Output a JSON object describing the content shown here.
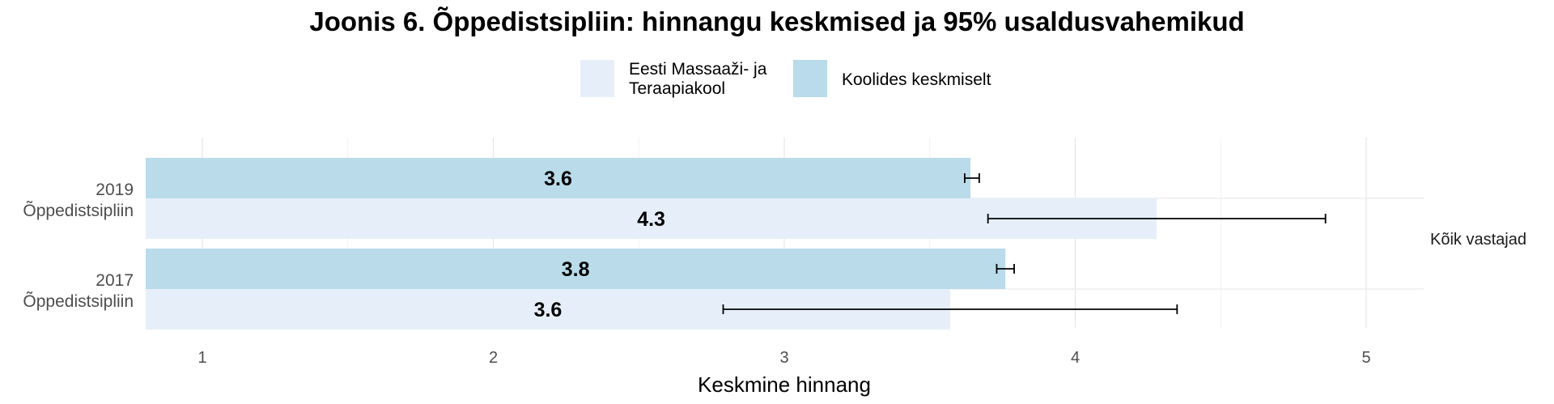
{
  "chart_data": {
    "type": "bar",
    "orientation": "horizontal",
    "title": "Joonis 6. Õppedistsipliin: hinnangu keskmised ja 95% usaldusvahemikud",
    "xlabel": "Keskmine hinnang",
    "xlim": [
      0.8,
      5.2
    ],
    "xticks": [
      "1",
      "2",
      "3",
      "4",
      "5"
    ],
    "xtick_values": [
      1,
      2,
      3,
      4,
      5
    ],
    "facet_label": "Kõik vastajad",
    "legend_position": "top",
    "categories": [
      "2019\nÕppedistsipliin",
      "2017\nÕppedistsipliin"
    ],
    "series": [
      {
        "name": "Koolides keskmiselt",
        "color": "#b9dbea",
        "values": [
          3.64,
          3.76
        ],
        "labels": [
          "3.6",
          "3.8"
        ],
        "ci_low": [
          3.62,
          3.73
        ],
        "ci_high": [
          3.67,
          3.79
        ]
      },
      {
        "name": "Eesti Massaaži- ja\nTeraapiakool",
        "color": "#e6eff9",
        "values": [
          4.28,
          3.57
        ],
        "labels": [
          "4.3",
          "3.6"
        ],
        "ci_low": [
          3.7,
          2.79
        ],
        "ci_high": [
          4.86,
          4.35
        ]
      }
    ],
    "grid": true
  },
  "legend": {
    "items": [
      {
        "label": "Eesti Massaaži- ja\nTeraapiakool",
        "color": "#e6eff9"
      },
      {
        "label": "Koolides keskmiselt",
        "color": "#b9dbea"
      }
    ]
  }
}
